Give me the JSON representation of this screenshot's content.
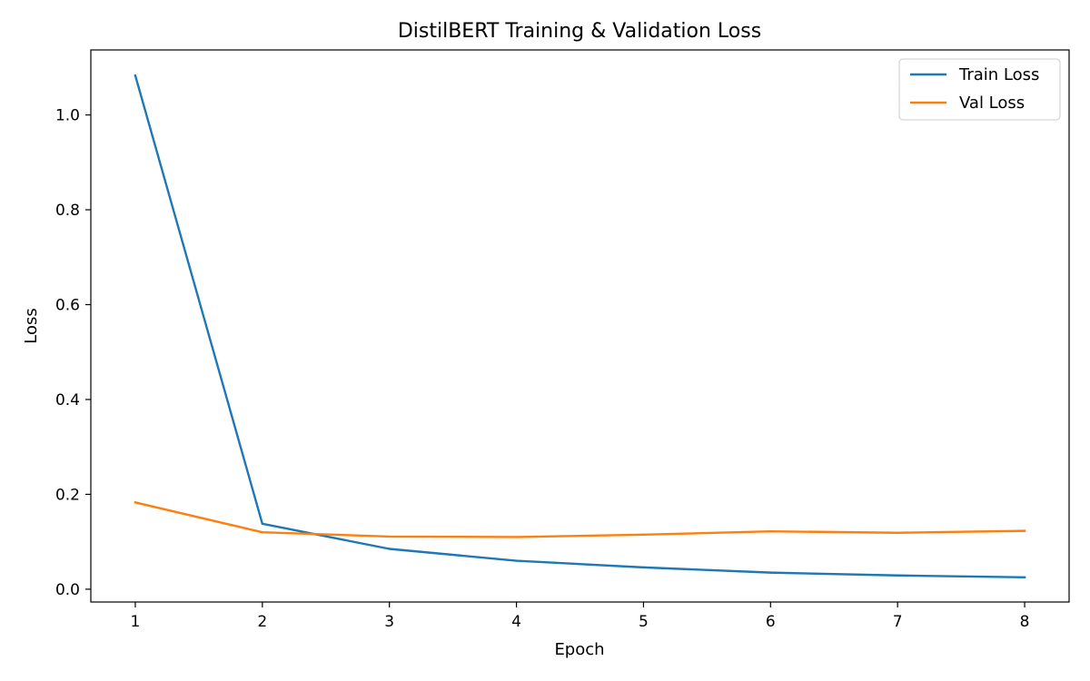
{
  "chart_data": {
    "type": "line",
    "title": "DistilBERT Training & Validation Loss",
    "xlabel": "Epoch",
    "ylabel": "Loss",
    "x": [
      1,
      2,
      3,
      4,
      5,
      6,
      7,
      8
    ],
    "xlim": [
      0.65,
      8.35
    ],
    "ylim": [
      -0.027,
      1.137
    ],
    "xticks": [
      1,
      2,
      3,
      4,
      5,
      6,
      7,
      8
    ],
    "xtick_labels": [
      "1",
      "2",
      "3",
      "4",
      "5",
      "6",
      "7",
      "8"
    ],
    "yticks": [
      0.0,
      0.2,
      0.4,
      0.6,
      0.8,
      1.0
    ],
    "ytick_labels": [
      "0.0",
      "0.2",
      "0.4",
      "0.6",
      "0.8",
      "1.0"
    ],
    "grid": false,
    "legend_position": "top-right",
    "series": [
      {
        "name": "Train Loss",
        "color": "#1f77b4",
        "values": [
          1.083,
          0.138,
          0.085,
          0.06,
          0.046,
          0.035,
          0.029,
          0.025
        ]
      },
      {
        "name": "Val Loss",
        "color": "#ff7f0e",
        "values": [
          0.183,
          0.12,
          0.111,
          0.11,
          0.115,
          0.122,
          0.119,
          0.123
        ]
      }
    ]
  }
}
